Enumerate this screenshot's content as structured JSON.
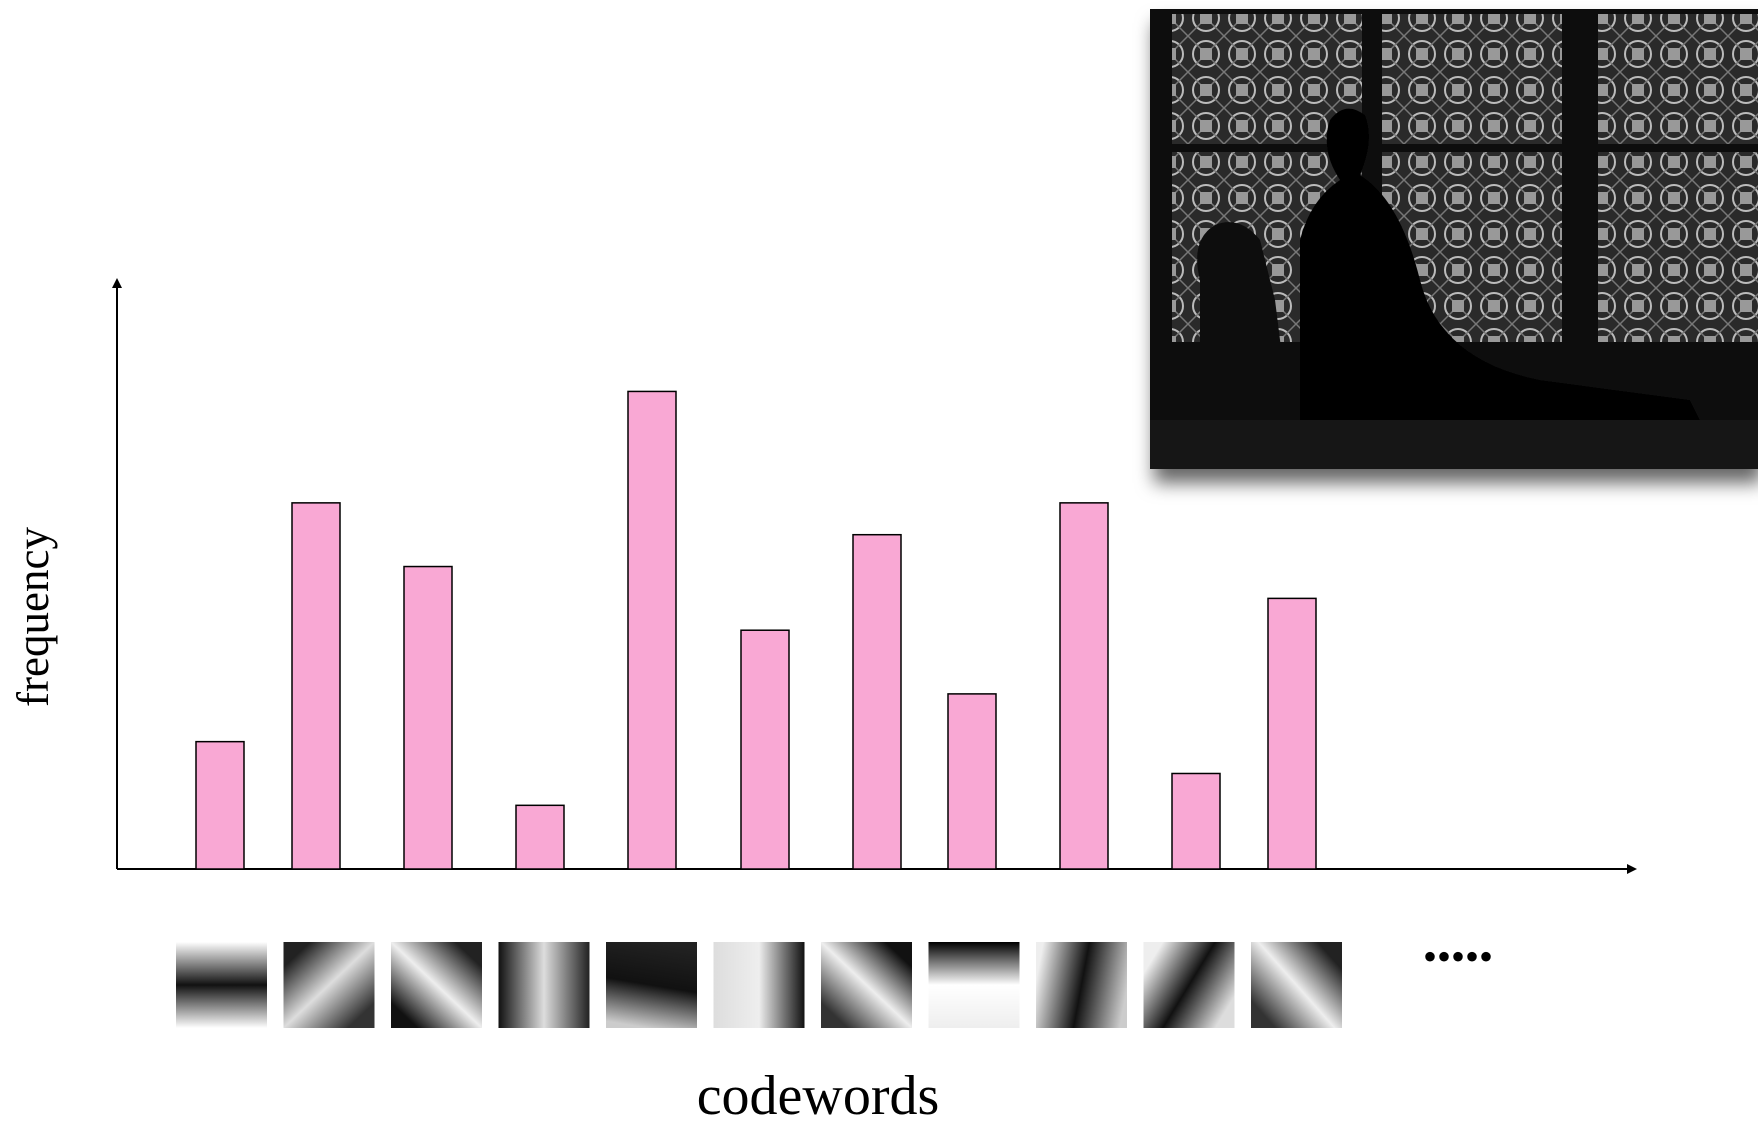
{
  "chart_data": {
    "type": "bar",
    "x_label": "codewords",
    "y_label": "frequency",
    "values": [
      8,
      23,
      19,
      4,
      30,
      15,
      21,
      11,
      23,
      6,
      17
    ],
    "color": "#f9a8d4",
    "ylim": [
      0,
      37
    ],
    "ellipsis": "•••••"
  }
}
